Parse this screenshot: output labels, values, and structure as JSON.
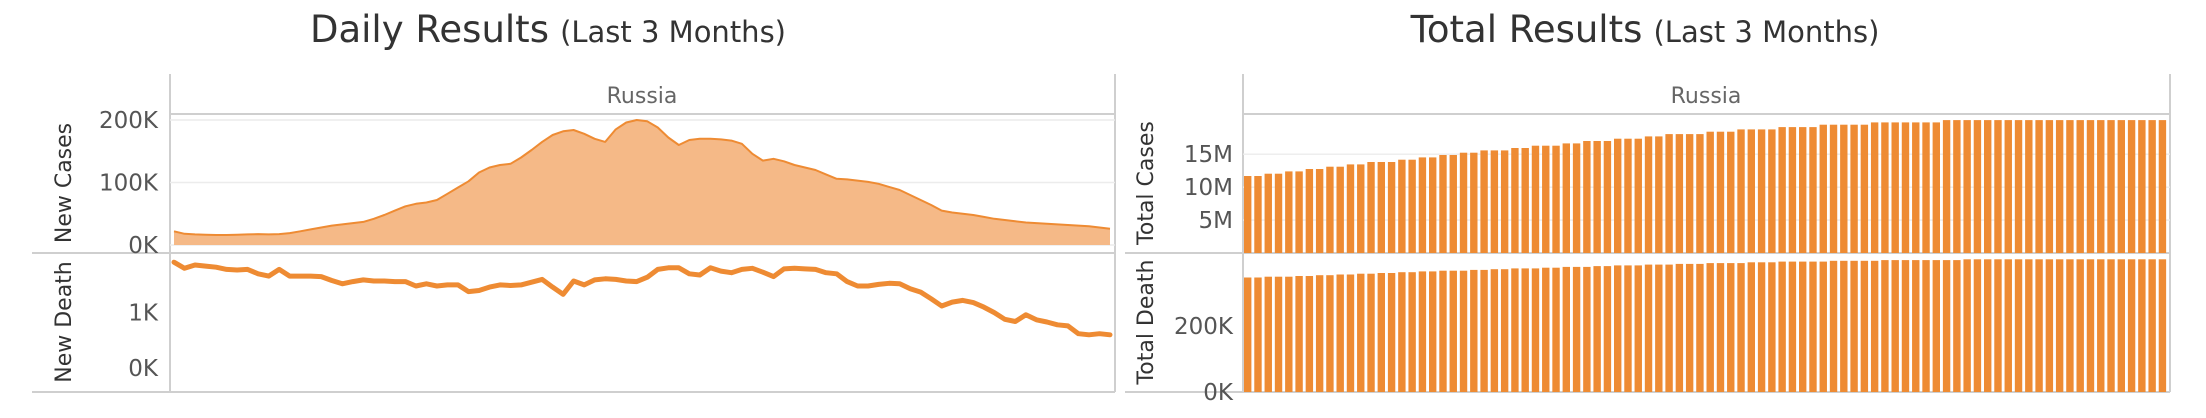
{
  "dashboard": {
    "left_title": "Daily Results",
    "left_subtitle": "(Last 3 Months)",
    "right_title": "Total Results",
    "right_subtitle": "(Last 3 Months)"
  },
  "colors": {
    "accent": "#EE8B33",
    "area_fill": "#F5B987",
    "frame": "#CFCFCF",
    "grid": "#ECECEC"
  },
  "chart_data": [
    {
      "id": "new-cases",
      "type": "area",
      "facet": "Russia",
      "ylabel": "New Cases",
      "ylim": [
        0,
        200000
      ],
      "ytick_values": [
        0,
        100000,
        200000
      ],
      "ytick_labels": [
        "0K",
        "100K",
        "200K"
      ],
      "grid": true,
      "x_count": 90,
      "values": [
        22000,
        18000,
        17000,
        16500,
        16000,
        16000,
        16500,
        17000,
        17500,
        17000,
        17500,
        19000,
        22000,
        25000,
        28000,
        31000,
        33000,
        35000,
        37000,
        42000,
        48000,
        55000,
        62000,
        66000,
        68000,
        72000,
        82000,
        92000,
        102000,
        116000,
        124000,
        128000,
        130000,
        140000,
        152000,
        165000,
        176000,
        182000,
        184000,
        178000,
        170000,
        165000,
        185000,
        196000,
        200000,
        198000,
        188000,
        172000,
        160000,
        168000,
        170000,
        170000,
        169000,
        167000,
        162000,
        146000,
        135000,
        138000,
        134000,
        128000,
        124000,
        120000,
        113000,
        106000,
        105000,
        103000,
        101000,
        98000,
        93000,
        88000,
        80000,
        72000,
        64000,
        55000,
        52000,
        50000,
        48000,
        45000,
        42000,
        40000,
        38000,
        36000,
        35000,
        34000,
        33000,
        32000,
        31000,
        30000,
        28000,
        26000
      ]
    },
    {
      "id": "new-death",
      "type": "line",
      "facet": "",
      "ylabel": "New Death",
      "ylim": [
        0,
        1950
      ],
      "ytick_values": [
        0,
        1000
      ],
      "ytick_labels": [
        "0K",
        "1K"
      ],
      "grid": false,
      "x_count": 90,
      "values": [
        1910,
        1800,
        1860,
        1840,
        1820,
        1780,
        1770,
        1780,
        1700,
        1660,
        1780,
        1660,
        1660,
        1660,
        1650,
        1580,
        1520,
        1560,
        1590,
        1570,
        1570,
        1560,
        1560,
        1480,
        1520,
        1480,
        1500,
        1500,
        1380,
        1400,
        1460,
        1500,
        1490,
        1500,
        1550,
        1600,
        1460,
        1330,
        1570,
        1500,
        1590,
        1610,
        1600,
        1570,
        1560,
        1640,
        1780,
        1810,
        1810,
        1700,
        1680,
        1810,
        1750,
        1720,
        1780,
        1800,
        1730,
        1650,
        1790,
        1800,
        1790,
        1780,
        1720,
        1700,
        1560,
        1480,
        1480,
        1510,
        1530,
        1520,
        1430,
        1370,
        1250,
        1120,
        1190,
        1220,
        1180,
        1100,
        1000,
        880,
        840,
        960,
        870,
        830,
        780,
        760,
        620,
        600,
        620,
        600
      ]
    },
    {
      "id": "total-cases",
      "type": "bar",
      "facet": "Russia",
      "ylabel": "Total Cases",
      "ylim": [
        0,
        20500000
      ],
      "ytick_values": [
        5000000,
        10000000,
        15000000
      ],
      "ytick_labels": [
        "5M",
        "10M",
        "15M"
      ],
      "grid": true,
      "bar_count": 90,
      "start": 11600000,
      "end": 20100000
    },
    {
      "id": "total-death",
      "type": "bar",
      "facet": "",
      "ylabel": "Total Death",
      "ylim": [
        0,
        405000
      ],
      "ytick_values": [
        0,
        200000
      ],
      "ytick_labels": [
        "0K",
        "200K"
      ],
      "grid": false,
      "bar_count": 90,
      "start": 345000,
      "end": 400000
    }
  ]
}
